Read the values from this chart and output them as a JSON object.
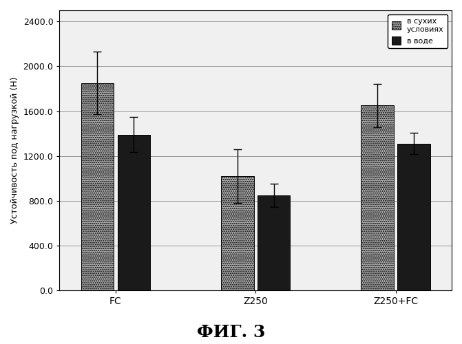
{
  "categories": [
    "FC",
    "Z250",
    "Z250+FC"
  ],
  "dry_values": [
    1850,
    1020,
    1650
  ],
  "wet_values": [
    1390,
    850,
    1310
  ],
  "dry_errors": [
    280,
    240,
    195
  ],
  "wet_errors": [
    155,
    105,
    95
  ],
  "ylabel": "Устойчивость под нагрузкой (Н)",
  "ylim": [
    0,
    2500
  ],
  "yticks": [
    0.0,
    400.0,
    800.0,
    1200.0,
    1600.0,
    2000.0,
    2400.0
  ],
  "legend_dry": "в сухих\nусловиях",
  "legend_wet": "в воде",
  "fig_label": "ФИГ. 3",
  "dry_color": "#b0b0b0",
  "wet_color": "#1a1a1a",
  "bar_width": 0.35,
  "background_color": "#ffffff",
  "plot_bg": "#f0f0f0"
}
